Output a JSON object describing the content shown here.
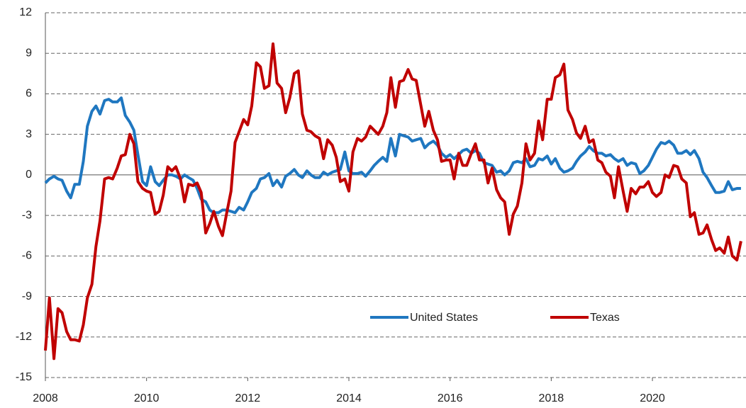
{
  "chart_data": {
    "type": "line",
    "x": [
      2008,
      2008.08,
      2008.17,
      2008.25,
      2008.33,
      2008.42,
      2008.5,
      2008.58,
      2008.67,
      2008.75,
      2008.83,
      2008.92,
      2009,
      2009.08,
      2009.17,
      2009.25,
      2009.33,
      2009.42,
      2009.5,
      2009.58,
      2009.67,
      2009.75,
      2009.83,
      2009.92,
      2010,
      2010.08,
      2010.17,
      2010.25,
      2010.33,
      2010.42,
      2010.5,
      2010.58,
      2010.67,
      2010.75,
      2010.83,
      2010.92,
      2011,
      2011.08,
      2011.17,
      2011.25,
      2011.33,
      2011.42,
      2011.5,
      2011.58,
      2011.67,
      2011.75,
      2011.83,
      2011.92,
      2012,
      2012.08,
      2012.17,
      2012.25,
      2012.33,
      2012.42,
      2012.5,
      2012.58,
      2012.67,
      2012.75,
      2012.83,
      2012.92,
      2013,
      2013.08,
      2013.17,
      2013.25,
      2013.33,
      2013.42,
      2013.5,
      2013.58,
      2013.67,
      2013.75,
      2013.83,
      2013.92,
      2014,
      2014.08,
      2014.17,
      2014.25,
      2014.33,
      2014.42,
      2014.5,
      2014.58,
      2014.67,
      2014.75,
      2014.83,
      2014.92,
      2015,
      2015.08,
      2015.17,
      2015.25,
      2015.33,
      2015.42,
      2015.5,
      2015.58,
      2015.67,
      2015.75,
      2015.83,
      2015.92,
      2016,
      2016.08,
      2016.17,
      2016.25,
      2016.33,
      2016.42,
      2016.5,
      2016.58,
      2016.67,
      2016.75,
      2016.83,
      2016.92,
      2017,
      2017.08,
      2017.17,
      2017.25,
      2017.33,
      2017.42,
      2017.5,
      2017.58,
      2017.67,
      2017.75,
      2017.83,
      2017.92,
      2018,
      2018.08,
      2018.17,
      2018.25,
      2018.33,
      2018.42,
      2018.5,
      2018.58,
      2018.67,
      2018.75,
      2018.83,
      2018.92,
      2019,
      2019.08,
      2019.17,
      2019.25,
      2019.33,
      2019.42,
      2019.5,
      2019.58,
      2019.67,
      2019.75,
      2019.83,
      2019.92,
      2020,
      2020.08,
      2020.17,
      2020.25,
      2020.33,
      2020.42,
      2020.5,
      2020.58,
      2020.67,
      2020.75,
      2020.83,
      2020.92,
      2021,
      2021.08,
      2021.17,
      2021.25,
      2021.33,
      2021.42,
      2021.5,
      2021.58,
      2021.67,
      2021.75
    ],
    "series": [
      {
        "name": "United States",
        "color": "#1f77c0",
        "values": [
          -0.6,
          -0.3,
          -0.1,
          -0.3,
          -0.4,
          -1.2,
          -1.7,
          -0.7,
          -0.7,
          1.0,
          3.6,
          4.7,
          5.1,
          4.5,
          5.5,
          5.6,
          5.4,
          5.4,
          5.7,
          4.4,
          3.9,
          3.3,
          1.5,
          -0.5,
          -0.8,
          0.6,
          -0.5,
          -0.8,
          -0.4,
          0,
          0,
          -0.1,
          -0.3,
          0,
          -0.2,
          -0.4,
          -1.0,
          -1.8,
          -2.0,
          -2.6,
          -2.8,
          -2.8,
          -2.6,
          -2.6,
          -2.7,
          -2.8,
          -2.4,
          -2.6,
          -2.0,
          -1.3,
          -1.0,
          -0.3,
          -0.2,
          0.1,
          -0.8,
          -0.4,
          -0.9,
          -0.1,
          0.1,
          0.4,
          0,
          -0.2,
          0.3,
          0,
          -0.2,
          -0.2,
          0.2,
          0,
          0.2,
          0.3,
          0.4,
          1.7,
          0.3,
          0.1,
          0.1,
          0.2,
          -0.1,
          0.3,
          0.7,
          1.0,
          1.3,
          1.0,
          2.7,
          1.4,
          3.0,
          2.9,
          2.8,
          2.5,
          2.6,
          2.7,
          2.0,
          2.3,
          2.5,
          2.2,
          1.6,
          1.3,
          1.5,
          1.2,
          1.5,
          1.8,
          1.9,
          1.6,
          1.8,
          1.6,
          0.9,
          0.8,
          0.7,
          0.2,
          0.3,
          0,
          0.3,
          0.9,
          1.0,
          0.9,
          1.2,
          0.6,
          0.7,
          1.2,
          1.1,
          1.4,
          0.8,
          1.2,
          0.5,
          0.2,
          0.3,
          0.5,
          1.0,
          1.4,
          1.7,
          2.1,
          1.8,
          1.6,
          1.6,
          1.4,
          1.5,
          1.2,
          1.0,
          1.2,
          0.7,
          0.9,
          0.8,
          0.1,
          0.3,
          0.7,
          1.3,
          1.9,
          2.4,
          2.3,
          2.5,
          2.2,
          1.6,
          1.6,
          1.8,
          1.5,
          1.8,
          1.2,
          0.2,
          -0.2,
          -0.8,
          -1.3,
          -1.3,
          -1.2,
          -0.5,
          -1.1,
          -1.0,
          -1.0
        ]
      },
      {
        "name": "Texas",
        "color": "#c00000",
        "values": [
          -13.0,
          -9.1,
          -13.6,
          -9.9,
          -10.2,
          -11.6,
          -12.2,
          -12.2,
          -12.3,
          -11.1,
          -9.1,
          -8.1,
          -5.3,
          -3.4,
          -0.3,
          -0.2,
          -0.3,
          0.5,
          1.4,
          1.5,
          3.0,
          2.3,
          -0.5,
          -1.0,
          -1.2,
          -1.3,
          -2.9,
          -2.7,
          -1.5,
          0.6,
          0.3,
          0.6,
          -0.3,
          -2.0,
          -0.7,
          -0.8,
          -0.6,
          -1.3,
          -4.3,
          -3.6,
          -2.7,
          -3.8,
          -4.5,
          -2.9,
          -1.2,
          2.4,
          3.2,
          4.1,
          3.7,
          5.1,
          8.3,
          8.0,
          6.4,
          6.6,
          9.7,
          6.8,
          6.4,
          4.6,
          5.7,
          7.5,
          7.7,
          4.5,
          3.3,
          3.2,
          2.9,
          2.7,
          1.2,
          2.6,
          2.2,
          1.3,
          -0.5,
          -0.3,
          -1.2,
          1.7,
          2.7,
          2.5,
          2.8,
          3.6,
          3.3,
          3.0,
          3.6,
          4.6,
          7.2,
          5.0,
          6.9,
          7.0,
          7.8,
          7.1,
          7.0,
          5.2,
          3.6,
          4.7,
          3.3,
          2.6,
          1.0,
          1.1,
          1.1,
          -0.3,
          1.6,
          0.7,
          0.7,
          1.6,
          2.3,
          1.1,
          1.1,
          -0.6,
          0.5,
          -1.1,
          -1.7,
          -2.0,
          -4.4,
          -2.9,
          -2.3,
          -0.6,
          2.3,
          1.1,
          1.6,
          4.0,
          2.6,
          5.6,
          5.6,
          7.2,
          7.4,
          8.2,
          4.8,
          4.1,
          3.1,
          2.7,
          3.6,
          2.4,
          2.6,
          1.1,
          0.9,
          0.2,
          -0.1,
          -1.7,
          0.6,
          -1.2,
          -2.7,
          -1.0,
          -1.4,
          -0.9,
          -0.9,
          -0.5,
          -1.3,
          -1.6,
          -1.3,
          0,
          -0.2,
          0.7,
          0.6,
          -0.3,
          -0.6,
          -3.1,
          -2.8,
          -4.4,
          -4.3,
          -3.7,
          -4.8,
          -5.6,
          -5.4,
          -5.8,
          -4.6,
          -6.0,
          -6.3,
          -4.9
        ]
      }
    ],
    "xlim": [
      2008,
      2021.85
    ],
    "xticks": [
      2008,
      2010,
      2012,
      2014,
      2016,
      2018,
      2020
    ],
    "ylim": [
      -15,
      12
    ],
    "yticks": [
      -15,
      -12,
      -9,
      -6,
      -3,
      0,
      3,
      6,
      9,
      12
    ],
    "grid": true,
    "legend": "lower center"
  }
}
